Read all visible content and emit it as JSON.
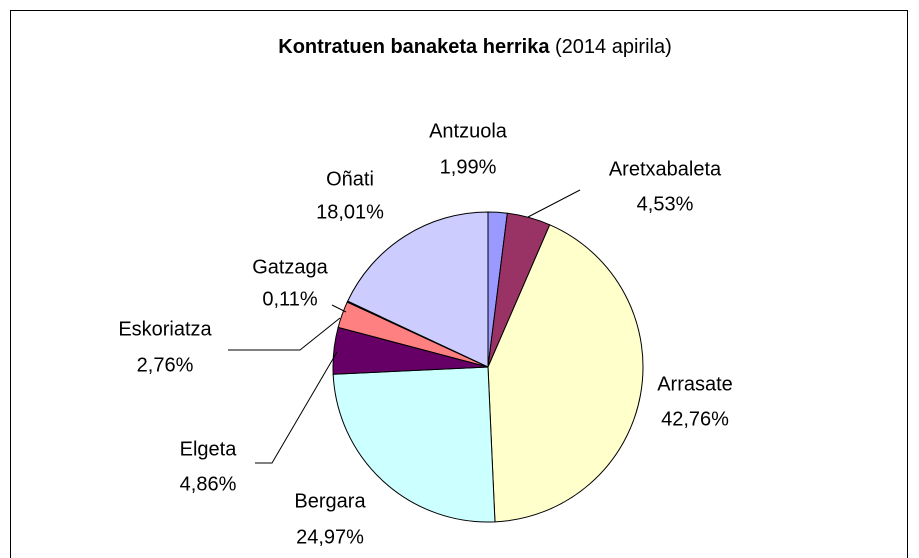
{
  "chart_data": {
    "type": "pie",
    "title": "Kontratuen banaketa herrika",
    "subtitle": "(2014 apirila)",
    "categories": [
      "Antzuola",
      "Aretxabaleta",
      "Arrasate",
      "Bergara",
      "Elgeta",
      "Eskoriatza",
      "Gatzaga",
      "Oñati"
    ],
    "values": [
      1.99,
      4.53,
      42.76,
      24.97,
      4.86,
      2.76,
      0.11,
      18.01
    ],
    "value_labels": [
      "1,99%",
      "4,53%",
      "42,76%",
      "24,97%",
      "4,86%",
      "2,76%",
      "0,11%",
      "18,01%"
    ],
    "colors": [
      "#9999ff",
      "#993366",
      "#ffffcc",
      "#ccffff",
      "#660066",
      "#ff8080",
      "#0066cc",
      "#ccccff"
    ]
  }
}
